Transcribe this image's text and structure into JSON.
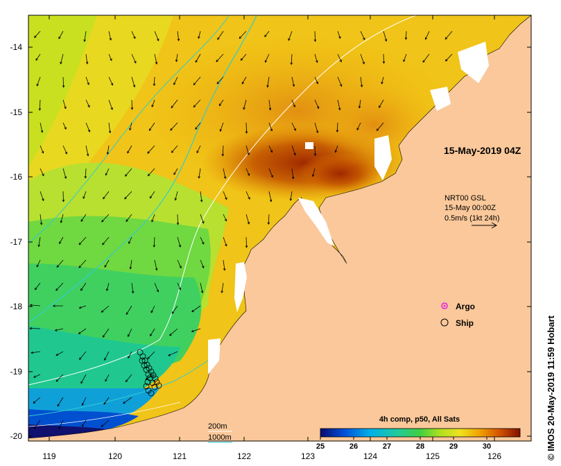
{
  "map": {
    "date_label": "15-May-2019 04Z",
    "current_info": {
      "product": "NRT00 GSL",
      "time": "15-May 00:00Z",
      "scale": "0.5m/s (1kt 24h)"
    },
    "legend": {
      "argo_label": "Argo",
      "ship_label": "Ship"
    },
    "contours": {
      "label_200m": "200m",
      "label_1000m": "1000m",
      "color_200m": "#ffffff",
      "color_1000m": "#33cccc"
    },
    "colorbar": {
      "title": "4h comp, p50, All Sats",
      "ticks": [
        "25",
        "26",
        "27",
        "28",
        "29",
        "30"
      ],
      "range": [
        25,
        31
      ]
    },
    "credit": "© IMOS 20-May-2019 11:59 Hobart",
    "lon_ticks": [
      "119",
      "120",
      "121",
      "122",
      "123",
      "124",
      "125",
      "126"
    ],
    "lat_ticks": [
      "-14",
      "-15",
      "-16",
      "-17",
      "-18",
      "-19",
      "-20"
    ],
    "colors": {
      "land": "#fac89a",
      "argo": "#e020e0",
      "frame": "#000000"
    }
  }
}
